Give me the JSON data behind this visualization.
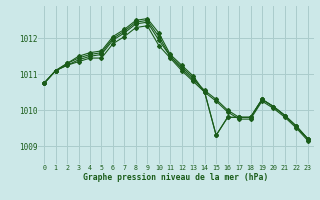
{
  "xlabel": "Graphe pression niveau de la mer (hPa)",
  "background_color": "#cce8e8",
  "grid_color": "#aacccc",
  "line_color": "#1a5c1a",
  "x_ticks": [
    0,
    1,
    2,
    3,
    4,
    5,
    6,
    7,
    8,
    9,
    10,
    11,
    12,
    13,
    14,
    15,
    16,
    17,
    18,
    19,
    20,
    21,
    22,
    23
  ],
  "y_ticks": [
    1009,
    1010,
    1011,
    1012
  ],
  "ylim": [
    1008.5,
    1012.9
  ],
  "xlim": [
    -0.5,
    23.5
  ],
  "series": [
    [
      1010.75,
      1011.1,
      1011.25,
      1011.35,
      1011.45,
      1011.45,
      1011.85,
      1012.05,
      1012.3,
      1012.35,
      1011.8,
      1011.45,
      1011.1,
      1010.8,
      1010.5,
      1010.25,
      1009.95,
      1009.75,
      1009.75,
      1010.25,
      1010.05,
      1009.8,
      1009.5,
      1009.15
    ],
    [
      1010.75,
      1011.1,
      1011.25,
      1011.4,
      1011.5,
      1011.55,
      1011.95,
      1012.15,
      1012.4,
      1012.45,
      1011.95,
      1011.5,
      1011.15,
      1010.85,
      1010.55,
      1010.3,
      1010.0,
      1009.8,
      1009.8,
      1010.3,
      1010.1,
      1009.85,
      1009.55,
      1009.2
    ],
    [
      1010.75,
      1011.1,
      1011.3,
      1011.45,
      1011.55,
      1011.6,
      1012.0,
      1012.2,
      1012.45,
      1012.5,
      1012.05,
      1011.5,
      1011.2,
      1010.9,
      1010.5,
      1009.3,
      1009.8,
      1009.8,
      1009.8,
      1010.3,
      1010.1,
      1009.85,
      1009.55,
      1009.2
    ],
    [
      1010.75,
      1011.1,
      1011.3,
      1011.5,
      1011.6,
      1011.65,
      1012.05,
      1012.25,
      1012.5,
      1012.55,
      1012.15,
      1011.55,
      1011.25,
      1010.95,
      1010.5,
      1009.3,
      1009.8,
      1009.8,
      1009.8,
      1010.3,
      1010.1,
      1009.85,
      1009.55,
      1009.2
    ]
  ]
}
